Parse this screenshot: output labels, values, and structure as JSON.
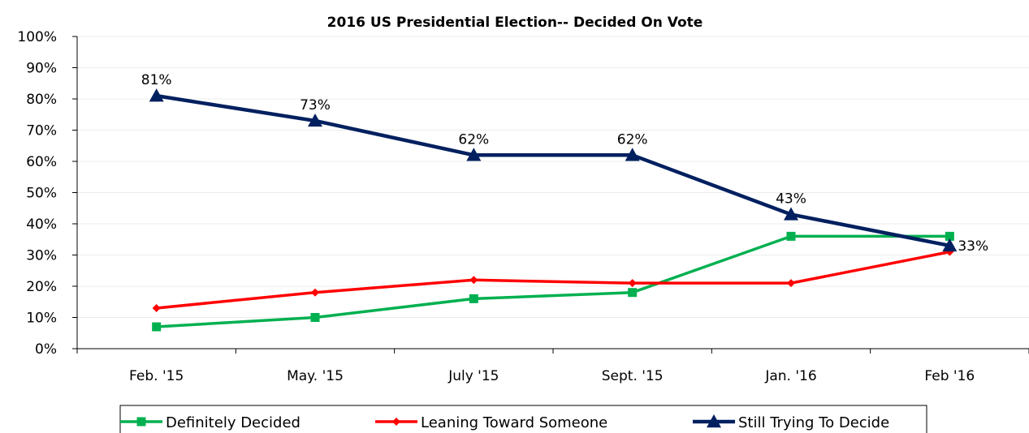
{
  "chart_data": {
    "type": "line",
    "title": "2016 US Presidential Election-- Decided On Vote",
    "categories": [
      "Feb. '15",
      "May. '15",
      "July '15",
      "Sept. '15",
      "Jan. '16",
      "Feb '16"
    ],
    "ylim": [
      0,
      100
    ],
    "y_ticks": [
      "0%",
      "10%",
      "20%",
      "30%",
      "40%",
      "50%",
      "60%",
      "70%",
      "80%",
      "90%",
      "100%"
    ],
    "grid": true,
    "legend_position": "bottom",
    "series": [
      {
        "name": "Definitely Decided",
        "color": "#00b050",
        "marker": "square",
        "values": [
          7,
          10,
          16,
          18,
          36,
          36
        ]
      },
      {
        "name": "Leaning Toward Someone",
        "color": "#ff0000",
        "marker": "diamond",
        "values": [
          13,
          18,
          22,
          21,
          21,
          31
        ]
      },
      {
        "name": "Still Trying To Decide",
        "color": "#002060",
        "marker": "triangle",
        "values": [
          81,
          73,
          62,
          62,
          43,
          33
        ],
        "data_labels": [
          "81%",
          "73%",
          "62%",
          "62%",
          "43%",
          "33%"
        ]
      }
    ]
  }
}
